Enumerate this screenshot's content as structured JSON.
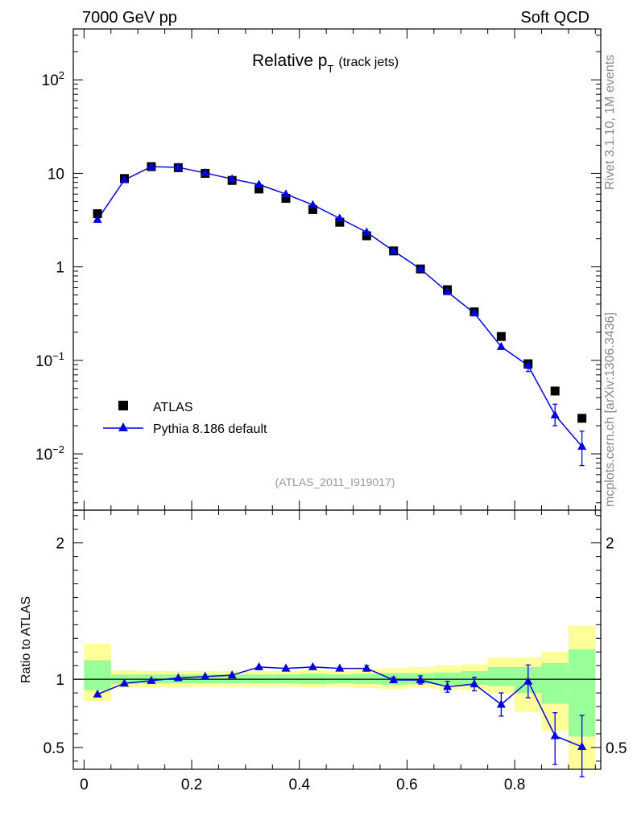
{
  "header": {
    "left": "7000 GeV pp",
    "right": "Soft QCD"
  },
  "side_labels": {
    "top": "Rivet 3.1.10,  1M events",
    "bottom": "mcplots.cern.ch [arXiv:1306.3436]"
  },
  "chart_data": [
    {
      "type": "scatter",
      "title_main": "Relative p",
      "title_sub": "T",
      "title_suffix": "(track jets)",
      "analysis_id": "(ATLAS_2011_I919017)",
      "yscale": "log",
      "xlim": [
        -0.02,
        0.96
      ],
      "ylim": [
        0.0025,
        350
      ],
      "yticks": [
        {
          "value": 100,
          "base": "10",
          "exp": "2"
        },
        {
          "value": 10,
          "base": "10",
          "exp": ""
        },
        {
          "value": 1,
          "base": "1",
          "exp": ""
        },
        {
          "value": 0.1,
          "base": "10",
          "exp": "−1"
        },
        {
          "value": 0.01,
          "base": "10",
          "exp": "−2"
        }
      ],
      "legend": [
        {
          "label": "ATLAS",
          "marker": "square",
          "color": "#000000"
        },
        {
          "label": "Pythia 8.186 default",
          "marker": "triangle",
          "color": "#0000dd"
        }
      ],
      "series": [
        {
          "name": "ATLAS",
          "x": [
            0.025,
            0.075,
            0.125,
            0.175,
            0.225,
            0.275,
            0.325,
            0.375,
            0.425,
            0.475,
            0.525,
            0.575,
            0.625,
            0.675,
            0.725,
            0.775,
            0.825,
            0.875,
            0.925
          ],
          "y": [
            3.7,
            8.8,
            11.8,
            11.5,
            10.0,
            8.4,
            6.8,
            5.4,
            4.1,
            3.0,
            2.15,
            1.48,
            0.95,
            0.57,
            0.33,
            0.18,
            0.092,
            0.047,
            0.024
          ]
        },
        {
          "name": "Pythia 8.186 default",
          "x": [
            0.025,
            0.075,
            0.125,
            0.175,
            0.225,
            0.275,
            0.325,
            0.375,
            0.425,
            0.475,
            0.525,
            0.575,
            0.625,
            0.675,
            0.725,
            0.775,
            0.825,
            0.875,
            0.925
          ],
          "y": [
            3.2,
            8.5,
            11.8,
            11.6,
            10.1,
            8.7,
            7.6,
            6.0,
            4.6,
            3.3,
            2.35,
            1.48,
            0.95,
            0.54,
            0.32,
            0.14,
            0.088,
            0.026,
            0.012
          ],
          "yerr_lo": [
            0,
            0,
            0,
            0,
            0,
            0,
            0,
            0,
            0,
            0,
            0,
            0,
            0,
            0,
            0,
            0,
            0.012,
            0.006,
            0.0045
          ],
          "yerr_hi": [
            0,
            0,
            0,
            0,
            0,
            0,
            0,
            0,
            0,
            0,
            0,
            0,
            0,
            0,
            0,
            0,
            0.012,
            0.008,
            0.0055
          ]
        }
      ]
    },
    {
      "type": "scatter",
      "ylabel": "Ratio to ATLAS",
      "xlim": [
        -0.02,
        0.96
      ],
      "ylim": [
        0.34,
        2.24
      ],
      "xticks": [
        0,
        0.2,
        0.4,
        0.6,
        0.8
      ],
      "xticklabels": [
        "0",
        "0.2",
        "0.4",
        "0.6",
        "0.8"
      ],
      "yticks": [
        0.5,
        1,
        2
      ],
      "yticklabels": [
        "0.5",
        "1",
        "2"
      ],
      "reference_line": 1,
      "bands": {
        "bin_edges": [
          0,
          0.05,
          0.1,
          0.15,
          0.2,
          0.25,
          0.3,
          0.35,
          0.4,
          0.45,
          0.5,
          0.55,
          0.6,
          0.65,
          0.7,
          0.75,
          0.8,
          0.85,
          0.9,
          0.95
        ],
        "yellow_lo": [
          0.84,
          0.94,
          0.94,
          0.94,
          0.945,
          0.945,
          0.945,
          0.945,
          0.94,
          0.945,
          0.935,
          0.93,
          0.94,
          0.93,
          0.92,
          0.9,
          0.76,
          0.62,
          0.34
        ],
        "yellow_hi": [
          1.26,
          1.065,
          1.06,
          1.06,
          1.06,
          1.06,
          1.06,
          1.06,
          1.065,
          1.06,
          1.075,
          1.08,
          1.09,
          1.1,
          1.11,
          1.16,
          1.16,
          1.2,
          1.39
        ],
        "green_lo": [
          0.92,
          0.965,
          0.97,
          0.97,
          0.97,
          0.97,
          0.97,
          0.97,
          0.965,
          0.97,
          0.965,
          0.96,
          0.965,
          0.96,
          0.96,
          0.95,
          0.9,
          0.82,
          0.58
        ],
        "green_hi": [
          1.14,
          1.035,
          1.035,
          1.035,
          1.035,
          1.035,
          1.035,
          1.035,
          1.04,
          1.035,
          1.04,
          1.045,
          1.045,
          1.05,
          1.06,
          1.09,
          1.09,
          1.12,
          1.22
        ]
      },
      "series": [
        {
          "name": "Pythia 8.186 default",
          "x": [
            0.025,
            0.075,
            0.125,
            0.175,
            0.225,
            0.275,
            0.325,
            0.375,
            0.425,
            0.475,
            0.525,
            0.575,
            0.625,
            0.675,
            0.725,
            0.775,
            0.825,
            0.875,
            0.925
          ],
          "y": [
            0.89,
            0.97,
            0.99,
            1.01,
            1.02,
            1.03,
            1.09,
            1.08,
            1.09,
            1.08,
            1.08,
            0.995,
            0.995,
            0.945,
            0.965,
            0.815,
            0.985,
            0.585,
            0.505
          ],
          "yerr_lo": [
            0,
            0,
            0,
            0,
            0,
            0,
            0,
            0,
            0,
            0,
            0.02,
            0.02,
            0.03,
            0.04,
            0.05,
            0.085,
            0.12,
            0.21,
            0.22
          ],
          "yerr_hi": [
            0,
            0,
            0,
            0,
            0,
            0,
            0,
            0,
            0,
            0,
            0.02,
            0.02,
            0.03,
            0.04,
            0.05,
            0.085,
            0.12,
            0.17,
            0.23
          ]
        }
      ]
    }
  ]
}
